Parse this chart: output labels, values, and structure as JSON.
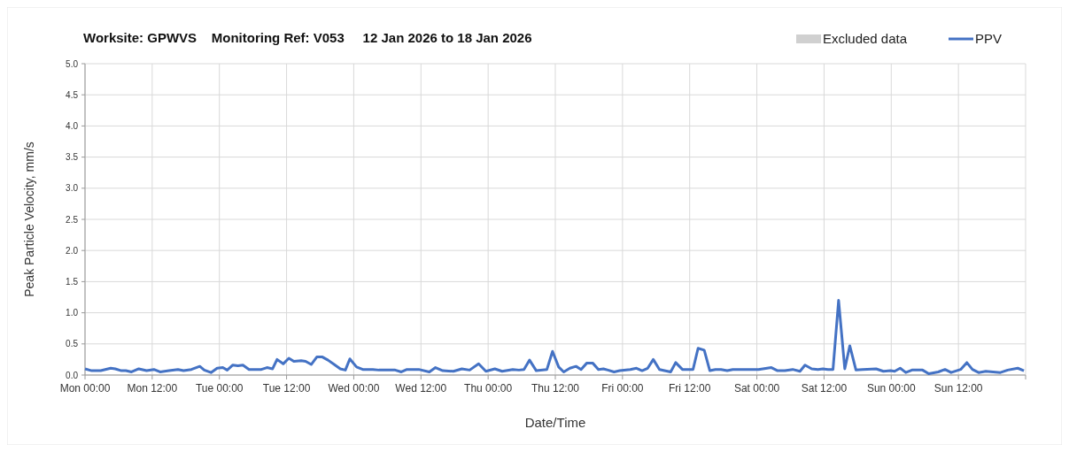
{
  "chart_data": {
    "type": "line",
    "title": "Worksite: GPWVS    Monitoring Ref: V053     12 Jan 2026 to 18 Jan 2026",
    "xlabel": "Date/Time",
    "ylabel": "Peak Particle Velocity, mm/s",
    "x": [
      "2026-01-12T00:00",
      "2026-01-12T01:12",
      "2026-01-12T02:48",
      "2026-01-12T04:36",
      "2026-01-12T05:24",
      "2026-01-12T06:30",
      "2026-01-12T07:18",
      "2026-01-12T08:18",
      "2026-01-12T09:36",
      "2026-01-12T11:00",
      "2026-01-12T12:18",
      "2026-01-12T13:24",
      "2026-01-12T15:00",
      "2026-01-12T16:36",
      "2026-01-12T17:36",
      "2026-01-12T19:00",
      "2026-01-12T20:30",
      "2026-01-12T21:18",
      "2026-01-12T22:30",
      "2026-01-12T23:36",
      "2026-01-13T00:36",
      "2026-01-13T01:24",
      "2026-01-13T02:24",
      "2026-01-13T03:18",
      "2026-01-13T04:12",
      "2026-01-13T05:18",
      "2026-01-13T07:30",
      "2026-01-13T08:30",
      "2026-01-13T09:30",
      "2026-01-13T10:18",
      "2026-01-13T11:24",
      "2026-01-13T12:24",
      "2026-01-13T13:18",
      "2026-01-13T14:36",
      "2026-01-13T15:24",
      "2026-01-13T16:24",
      "2026-01-13T17:24",
      "2026-01-13T18:24",
      "2026-01-13T19:24",
      "2026-01-13T20:30",
      "2026-01-13T21:36",
      "2026-01-13T22:30",
      "2026-01-13T23:18",
      "2026-01-14T00:30",
      "2026-01-14T01:36",
      "2026-01-14T03:24",
      "2026-01-14T04:30",
      "2026-01-14T06:36",
      "2026-01-14T07:24",
      "2026-01-14T08:30",
      "2026-01-14T09:30",
      "2026-01-14T11:36",
      "2026-01-14T13:30",
      "2026-01-14T14:36",
      "2026-01-14T15:54",
      "2026-01-14T17:48",
      "2026-01-14T19:18",
      "2026-01-14T20:42",
      "2026-01-14T22:18",
      "2026-01-14T23:36",
      "2026-01-15T01:12",
      "2026-01-15T02:30",
      "2026-01-15T04:24",
      "2026-01-15T05:30",
      "2026-01-15T06:24",
      "2026-01-15T07:24",
      "2026-01-15T08:36",
      "2026-01-15T10:30",
      "2026-01-15T11:30",
      "2026-01-15T12:36",
      "2026-01-15T13:30",
      "2026-01-15T14:36",
      "2026-01-15T15:42",
      "2026-01-15T16:36",
      "2026-01-15T17:36",
      "2026-01-15T18:42",
      "2026-01-15T19:42",
      "2026-01-15T20:36",
      "2026-01-15T21:24",
      "2026-01-15T22:30",
      "2026-01-15T23:30",
      "2026-01-16T01:24",
      "2026-01-16T02:30",
      "2026-01-16T03:30",
      "2026-01-16T04:30",
      "2026-01-16T05:30",
      "2026-01-16T06:36",
      "2026-01-16T08:36",
      "2026-01-16T09:30",
      "2026-01-16T10:42",
      "2026-01-16T12:36",
      "2026-01-16T13:30",
      "2026-01-16T14:36",
      "2026-01-16T15:36",
      "2026-01-16T16:36",
      "2026-01-16T17:36",
      "2026-01-16T18:42",
      "2026-01-16T19:42",
      "2026-01-17T00:18",
      "2026-01-17T02:36",
      "2026-01-17T03:42",
      "2026-01-17T05:00",
      "2026-01-17T06:24",
      "2026-01-17T07:42",
      "2026-01-17T08:36",
      "2026-01-17T09:48",
      "2026-01-17T10:54",
      "2026-01-17T11:48",
      "2026-01-17T12:42",
      "2026-01-17T13:36",
      "2026-01-17T14:36",
      "2026-01-17T15:42",
      "2026-01-17T16:36",
      "2026-01-17T17:42",
      "2026-01-17T18:54",
      "2026-01-17T21:18",
      "2026-01-17T22:36",
      "2026-01-17T23:54",
      "2026-01-18T00:36",
      "2026-01-18T01:36",
      "2026-01-18T02:36",
      "2026-01-18T03:42",
      "2026-01-18T05:36",
      "2026-01-18T06:42",
      "2026-01-18T08:24",
      "2026-01-18T09:36",
      "2026-01-18T10:42",
      "2026-01-18T12:24",
      "2026-01-18T13:30",
      "2026-01-18T14:30",
      "2026-01-18T15:36",
      "2026-01-18T16:54",
      "2026-01-18T19:30",
      "2026-01-18T20:48",
      "2026-01-18T22:36",
      "2026-01-18T23:42"
    ],
    "series": [
      {
        "name": "Excluded data",
        "type": "area",
        "color": "#d0d0d0",
        "values": [
          null,
          null,
          null,
          null,
          null,
          null,
          null,
          null,
          null,
          null,
          null,
          null,
          null,
          null,
          null,
          null,
          null,
          null,
          null,
          null,
          null,
          null,
          null,
          null,
          null,
          null,
          null,
          null,
          null,
          null,
          null,
          null,
          null,
          null,
          null,
          null,
          null,
          null,
          null,
          null,
          null,
          null,
          null,
          null,
          null,
          null,
          null,
          null,
          null,
          null,
          null,
          null,
          null,
          null,
          null,
          null,
          null,
          null,
          null,
          null,
          null,
          null,
          null,
          null,
          null,
          null,
          null,
          null,
          null,
          null,
          null,
          null,
          null,
          null,
          null,
          null,
          null,
          null,
          null,
          null,
          null,
          null,
          null,
          null,
          null,
          null,
          null,
          null,
          null,
          null,
          null,
          null,
          null,
          null,
          null,
          null,
          null,
          null,
          null,
          null,
          null,
          null,
          null,
          null,
          null,
          null,
          null,
          null,
          null,
          null,
          null,
          null,
          null,
          null,
          null,
          null,
          null,
          null,
          null,
          null,
          null,
          null,
          null,
          null,
          null,
          null,
          null,
          null,
          null,
          null,
          null,
          null,
          null,
          null,
          null,
          null
        ]
      },
      {
        "name": "PPV",
        "color": "#4472c4",
        "values": [
          0.1,
          0.07,
          0.07,
          0.11,
          0.1,
          0.07,
          0.07,
          0.05,
          0.1,
          0.07,
          0.09,
          0.05,
          0.07,
          0.09,
          0.07,
          0.09,
          0.14,
          0.08,
          0.04,
          0.11,
          0.12,
          0.08,
          0.16,
          0.15,
          0.16,
          0.09,
          0.09,
          0.12,
          0.1,
          0.25,
          0.18,
          0.27,
          0.22,
          0.23,
          0.22,
          0.17,
          0.29,
          0.29,
          0.24,
          0.17,
          0.1,
          0.08,
          0.26,
          0.13,
          0.09,
          0.09,
          0.08,
          0.08,
          0.08,
          0.05,
          0.09,
          0.09,
          0.05,
          0.12,
          0.07,
          0.06,
          0.1,
          0.08,
          0.18,
          0.06,
          0.1,
          0.06,
          0.09,
          0.08,
          0.09,
          0.24,
          0.07,
          0.09,
          0.38,
          0.13,
          0.05,
          0.11,
          0.14,
          0.09,
          0.19,
          0.19,
          0.09,
          0.1,
          0.08,
          0.05,
          0.07,
          0.09,
          0.11,
          0.07,
          0.11,
          0.25,
          0.09,
          0.05,
          0.2,
          0.09,
          0.09,
          0.43,
          0.4,
          0.07,
          0.09,
          0.09,
          0.07,
          0.09,
          0.09,
          0.12,
          0.07,
          0.07,
          0.09,
          0.06,
          0.16,
          0.1,
          0.09,
          0.1,
          0.09,
          0.09,
          1.2,
          0.1,
          0.47,
          0.08,
          0.09,
          0.1,
          0.06,
          0.07,
          0.06,
          0.11,
          0.04,
          0.08,
          0.08,
          0.02,
          0.05,
          0.09,
          0.04,
          0.09,
          0.2,
          0.09,
          0.04,
          0.06,
          0.04,
          0.08,
          0.11,
          0.07
        ]
      }
    ],
    "xlim": [
      "2026-01-12T00:00",
      "2026-01-19T00:00"
    ],
    "xticks": [
      {
        "value": "2026-01-12T00:00",
        "label": "Mon 00:00"
      },
      {
        "value": "2026-01-12T12:00",
        "label": "Mon 12:00"
      },
      {
        "value": "2026-01-13T00:00",
        "label": "Tue 00:00"
      },
      {
        "value": "2026-01-13T12:00",
        "label": "Tue 12:00"
      },
      {
        "value": "2026-01-14T00:00",
        "label": "Wed 00:00"
      },
      {
        "value": "2026-01-14T12:00",
        "label": "Wed 12:00"
      },
      {
        "value": "2026-01-15T00:00",
        "label": "Thu 00:00"
      },
      {
        "value": "2026-01-15T12:00",
        "label": "Thu 12:00"
      },
      {
        "value": "2026-01-16T00:00",
        "label": "Fri 00:00"
      },
      {
        "value": "2026-01-16T12:00",
        "label": "Fri 12:00"
      },
      {
        "value": "2026-01-17T00:00",
        "label": "Sat 00:00"
      },
      {
        "value": "2026-01-17T12:00",
        "label": "Sat 12:00"
      },
      {
        "value": "2026-01-18T00:00",
        "label": "Sun 00:00"
      },
      {
        "value": "2026-01-18T12:00",
        "label": "Sun 12:00"
      },
      {
        "value": "2026-01-19T00:00",
        "label": null
      }
    ],
    "ylim": [
      0,
      5
    ],
    "yticks": [
      {
        "value": 0,
        "label": "0.0"
      },
      {
        "value": 0.5,
        "label": "0.5"
      },
      {
        "value": 1,
        "label": "1.0"
      },
      {
        "value": 1.5,
        "label": "1.5"
      },
      {
        "value": 2,
        "label": "2.0"
      },
      {
        "value": 2.5,
        "label": "2.5"
      },
      {
        "value": 3,
        "label": "3.0"
      },
      {
        "value": 3.5,
        "label": "3.5"
      },
      {
        "value": 4,
        "label": "4.0"
      },
      {
        "value": 4.5,
        "label": "4.5"
      },
      {
        "value": 5,
        "label": "5.0"
      }
    ],
    "grid": true,
    "legend": "top right",
    "marker": "none",
    "line_style": "solid"
  }
}
